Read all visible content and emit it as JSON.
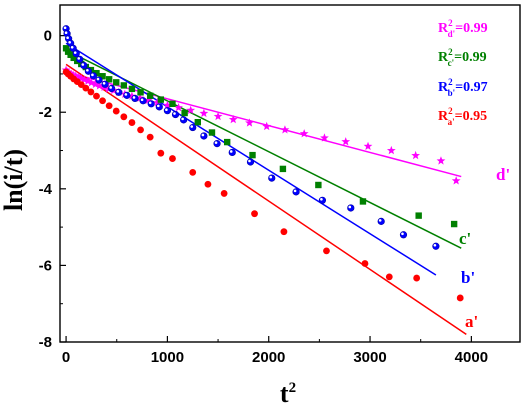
{
  "chart_data": {
    "type": "scatter",
    "xlabel": "t",
    "xlabel_sup": "2",
    "ylabel": "ln(i/t)",
    "xlim": [
      -60,
      4480
    ],
    "ylim": [
      -8,
      0.8
    ],
    "xticks": [
      0,
      1000,
      2000,
      3000,
      4000
    ],
    "yticks": [
      -8,
      -6,
      -4,
      -2,
      0
    ],
    "xtick_labels": [
      "0",
      "1000",
      "2000",
      "3000",
      "4000"
    ],
    "ytick_labels": [
      "-8",
      "-6",
      "-4",
      "-2",
      "0"
    ],
    "grid": false,
    "legend_position": "top-right",
    "series": [
      {
        "name": "d'",
        "color": "#ff00ff",
        "marker": "star",
        "label": "d'",
        "r2_prefix": "R",
        "r2_sup": "2",
        "r2_sub": "d'",
        "r2_value": "=0.99",
        "fit": [
          [
            0,
            -0.95
          ],
          [
            3900,
            -3.68
          ]
        ],
        "x": [
          0,
          15,
          30,
          50,
          70,
          95,
          120,
          150,
          180,
          215,
          250,
          290,
          330,
          375,
          420,
          470,
          520,
          580,
          650,
          730,
          810,
          900,
          1000,
          1110,
          1230,
          1360,
          1500,
          1650,
          1810,
          1980,
          2160,
          2350,
          2550,
          2760,
          2980,
          3210,
          3450,
          3700,
          3850
        ],
        "y": [
          -0.9,
          -0.95,
          -0.98,
          -1.0,
          -1.03,
          -1.06,
          -1.09,
          -1.12,
          -1.15,
          -1.19,
          -1.23,
          -1.27,
          -1.31,
          -1.35,
          -1.39,
          -1.43,
          -1.48,
          -1.53,
          -1.58,
          -1.63,
          -1.69,
          -1.75,
          -1.82,
          -1.88,
          -1.95,
          -2.03,
          -2.11,
          -2.19,
          -2.28,
          -2.37,
          -2.46,
          -2.56,
          -2.67,
          -2.77,
          -2.89,
          -3.0,
          -3.13,
          -3.27,
          -3.79
        ]
      },
      {
        "name": "c'",
        "color": "#008000",
        "marker": "square",
        "label": "c'",
        "r2_prefix": "R",
        "r2_sup": "2",
        "r2_sub": "c'",
        "r2_value": "=0.99",
        "fit": [
          [
            0,
            -0.38
          ],
          [
            3900,
            -5.55
          ]
        ],
        "x": [
          0,
          20,
          45,
          75,
          110,
          150,
          195,
          245,
          300,
          360,
          425,
          495,
          570,
          650,
          735,
          830,
          935,
          1050,
          1170,
          1300,
          1440,
          1590,
          1840,
          2140,
          2490,
          2930,
          3480,
          3830
        ],
        "y": [
          -0.33,
          -0.42,
          -0.5,
          -0.58,
          -0.66,
          -0.74,
          -0.82,
          -0.9,
          -0.98,
          -1.06,
          -1.14,
          -1.22,
          -1.3,
          -1.39,
          -1.48,
          -1.57,
          -1.67,
          -1.78,
          -2.02,
          -2.26,
          -2.53,
          -2.78,
          -3.12,
          -3.48,
          -3.9,
          -4.33,
          -4.7,
          -4.92
        ]
      },
      {
        "name": "b'",
        "color": "#0000ff",
        "marker": "circle",
        "label": "b'",
        "r2_prefix": "R",
        "r2_sup": "2",
        "r2_sub": "b'",
        "r2_value": "=0.97",
        "fit": [
          [
            0,
            -0.2
          ],
          [
            3650,
            -6.25
          ]
        ],
        "x": [
          0,
          10,
          25,
          45,
          70,
          100,
          135,
          175,
          220,
          270,
          325,
          385,
          450,
          520,
          600,
          680,
          760,
          840,
          920,
          1000,
          1080,
          1160,
          1250,
          1360,
          1490,
          1640,
          1820,
          2030,
          2270,
          2530,
          2810,
          3110,
          3330,
          3650
        ],
        "y": [
          0.18,
          0.05,
          -0.08,
          -0.2,
          -0.33,
          -0.47,
          -0.62,
          -0.78,
          -0.93,
          -1.05,
          -1.16,
          -1.27,
          -1.38,
          -1.48,
          -1.56,
          -1.64,
          -1.7,
          -1.78,
          -1.86,
          -1.96,
          -2.06,
          -2.2,
          -2.4,
          -2.62,
          -2.82,
          -3.05,
          -3.3,
          -3.72,
          -4.08,
          -4.3,
          -4.5,
          -4.85,
          -5.2,
          -5.5
        ]
      },
      {
        "name": "a'",
        "color": "#ff0000",
        "marker": "circle",
        "label": "a'",
        "r2_prefix": "R",
        "r2_sup": "2",
        "r2_sub": "a'",
        "r2_value": "=0.95",
        "fit": [
          [
            0,
            -0.75
          ],
          [
            3950,
            -7.8
          ]
        ],
        "x": [
          0,
          20,
          45,
          75,
          110,
          150,
          195,
          245,
          300,
          360,
          425,
          495,
          570,
          650,
          735,
          830,
          935,
          1050,
          1250,
          1400,
          1560,
          1860,
          2150,
          2570,
          2950,
          3190,
          3460,
          3890
        ],
        "y": [
          -0.95,
          -1.0,
          -1.06,
          -1.13,
          -1.2,
          -1.28,
          -1.37,
          -1.47,
          -1.58,
          -1.7,
          -1.83,
          -1.97,
          -2.12,
          -2.27,
          -2.46,
          -2.65,
          -3.07,
          -3.21,
          -3.57,
          -3.88,
          -4.12,
          -4.65,
          -5.12,
          -5.62,
          -5.95,
          -6.3,
          -6.33,
          -6.85
        ]
      }
    ]
  }
}
